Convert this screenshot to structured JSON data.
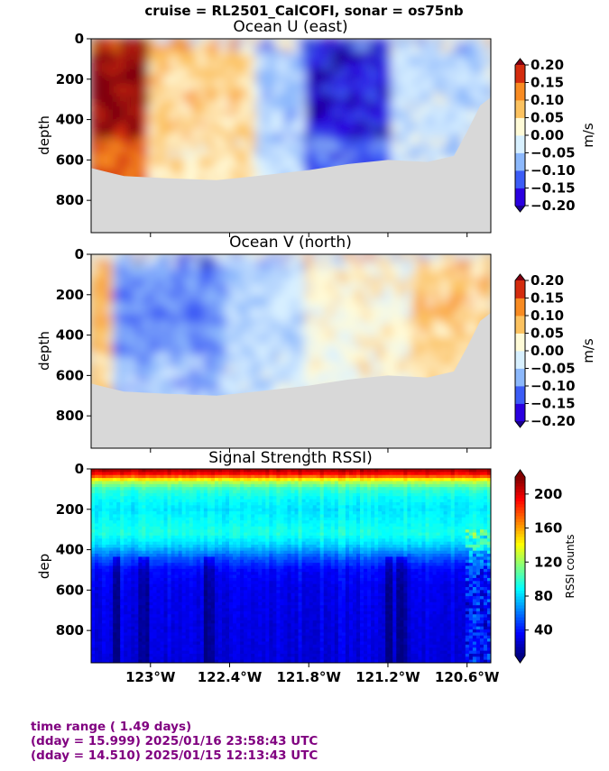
{
  "figure": {
    "suptitle": "cruise = RL2501_CalCOFI,  sonar = os75nb",
    "footer": {
      "line1": "time range ( 1.49 days)",
      "line2": "(dday = 15.999) 2025/01/16 23:58:43 UTC",
      "line3": "(dday = 14.510) 2025/01/15 12:13:43 UTC"
    }
  },
  "chart_data": [
    {
      "type": "heatmap",
      "title": "Ocean U (east)",
      "ylabel": "depth",
      "xlabel": "",
      "x_ticks": [
        "123°W",
        "122.4°W",
        "121.8°W",
        "121.2°W",
        "120.6°W"
      ],
      "y_ticks": [
        "0",
        "200",
        "400",
        "600",
        "800"
      ],
      "y_range": [
        0,
        960
      ],
      "x_range": [
        -123.45,
        -120.42
      ],
      "colorbar": {
        "label": "m/s",
        "ticks": [
          "0.20",
          "0.15",
          "0.10",
          "0.05",
          "0.00",
          "−0.05",
          "−0.10",
          "−0.15",
          "−0.20"
        ],
        "range": [
          -0.2,
          0.2
        ],
        "colors": [
          "#2a00e0",
          "#3c5cf6",
          "#8cb8fc",
          "#d8f0ff",
          "#fffbd8",
          "#fcc260",
          "#f88b22",
          "#d42c0e"
        ],
        "over_color": "#800010",
        "under_color": "#1a0090"
      },
      "no_data_color": "#d8d8d8",
      "bottom_depth_profile": {
        "lon": [
          -123.45,
          -123.2,
          -122.9,
          -122.5,
          -122.2,
          -121.8,
          -121.5,
          -121.2,
          -120.9,
          -120.7,
          -120.6,
          -120.5,
          -120.42
        ],
        "depth": [
          640,
          680,
          690,
          700,
          680,
          650,
          620,
          600,
          610,
          580,
          460,
          330,
          290
        ]
      },
      "regions": [
        {
          "lon": [
            -123.45,
            -123.0
          ],
          "value": 0.22
        },
        {
          "lon": [
            -123.0,
            -122.2
          ],
          "value": 0.06
        },
        {
          "lon": [
            -122.2,
            -121.8
          ],
          "value": -0.06
        },
        {
          "lon": [
            -121.8,
            -121.2
          ],
          "value": -0.18
        },
        {
          "lon": [
            -121.2,
            -120.42
          ],
          "value": -0.04
        }
      ]
    },
    {
      "type": "heatmap",
      "title": "Ocean V (north)",
      "ylabel": "depth",
      "xlabel": "",
      "x_ticks": [
        "123°W",
        "122.4°W",
        "121.8°W",
        "121.2°W",
        "120.6°W"
      ],
      "y_ticks": [
        "0",
        "200",
        "400",
        "600",
        "800"
      ],
      "y_range": [
        0,
        960
      ],
      "x_range": [
        -123.45,
        -120.42
      ],
      "colorbar": {
        "label": "m/s",
        "ticks": [
          "0.20",
          "0.15",
          "0.10",
          "0.05",
          "0.00",
          "−0.05",
          "−0.10",
          "−0.15",
          "−0.20"
        ],
        "range": [
          -0.2,
          0.2
        ]
      },
      "regions": [
        {
          "lon": [
            -123.45,
            -123.3
          ],
          "value": 0.08
        },
        {
          "lon": [
            -123.3,
            -122.4
          ],
          "value": -0.1
        },
        {
          "lon": [
            -122.4,
            -121.8
          ],
          "value": -0.05
        },
        {
          "lon": [
            -121.8,
            -121.0
          ],
          "value": 0.02
        },
        {
          "lon": [
            -121.0,
            -120.42
          ],
          "value": 0.07
        }
      ]
    },
    {
      "type": "heatmap",
      "title": "Signal Strength RSSI)",
      "ylabel": "dep",
      "xlabel": "",
      "x_ticks": [
        "123°W",
        "122.4°W",
        "121.8°W",
        "121.2°W",
        "120.6°W"
      ],
      "y_ticks": [
        "0",
        "200",
        "400",
        "600",
        "800"
      ],
      "y_range": [
        0,
        960
      ],
      "x_range": [
        -123.45,
        -120.42
      ],
      "colorbar": {
        "label": "RSSI counts",
        "ticks": [
          "200",
          "160",
          "120",
          "80",
          "40"
        ],
        "range": [
          10,
          220
        ]
      },
      "depth_profile": {
        "depth": [
          0,
          30,
          60,
          100,
          150,
          200,
          260,
          320,
          380,
          440,
          500,
          600,
          960
        ],
        "rssi": [
          215,
          190,
          130,
          100,
          90,
          85,
          90,
          95,
          80,
          55,
          38,
          33,
          30
        ]
      }
    }
  ]
}
